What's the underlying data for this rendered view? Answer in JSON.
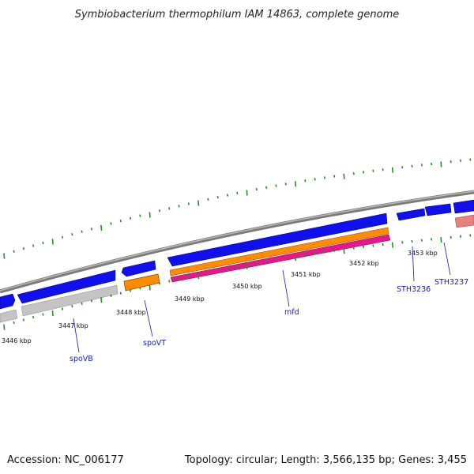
{
  "title": "Symbiobacterium thermophilum IAM 14863, complete genome",
  "footer": {
    "accession": "Accession: NC_006177",
    "summary": "Topology: circular; Length: 3,566,135 bp; Genes: 3,455"
  },
  "ruler_labels": [
    "3446 kbp",
    "3447 kbp",
    "3448 kbp",
    "3449 kbp",
    "3450 kbp",
    "3451 kbp",
    "3452 kbp",
    "3453 kbp"
  ],
  "gene_labels": [
    "spoVB",
    "spoVT",
    "mfd",
    "STH3236",
    "STH3237"
  ],
  "colors": {
    "backbone": "#8a8a8a",
    "cds_blue": "#1010ee",
    "gene_gray": "#c4c4c4",
    "gene_orange": "#ff8c00",
    "gene_magenta": "#e8168c",
    "gene_pink": "#e98080",
    "ticks": "#2a8a2a",
    "label_text": "#1a1aa8"
  }
}
